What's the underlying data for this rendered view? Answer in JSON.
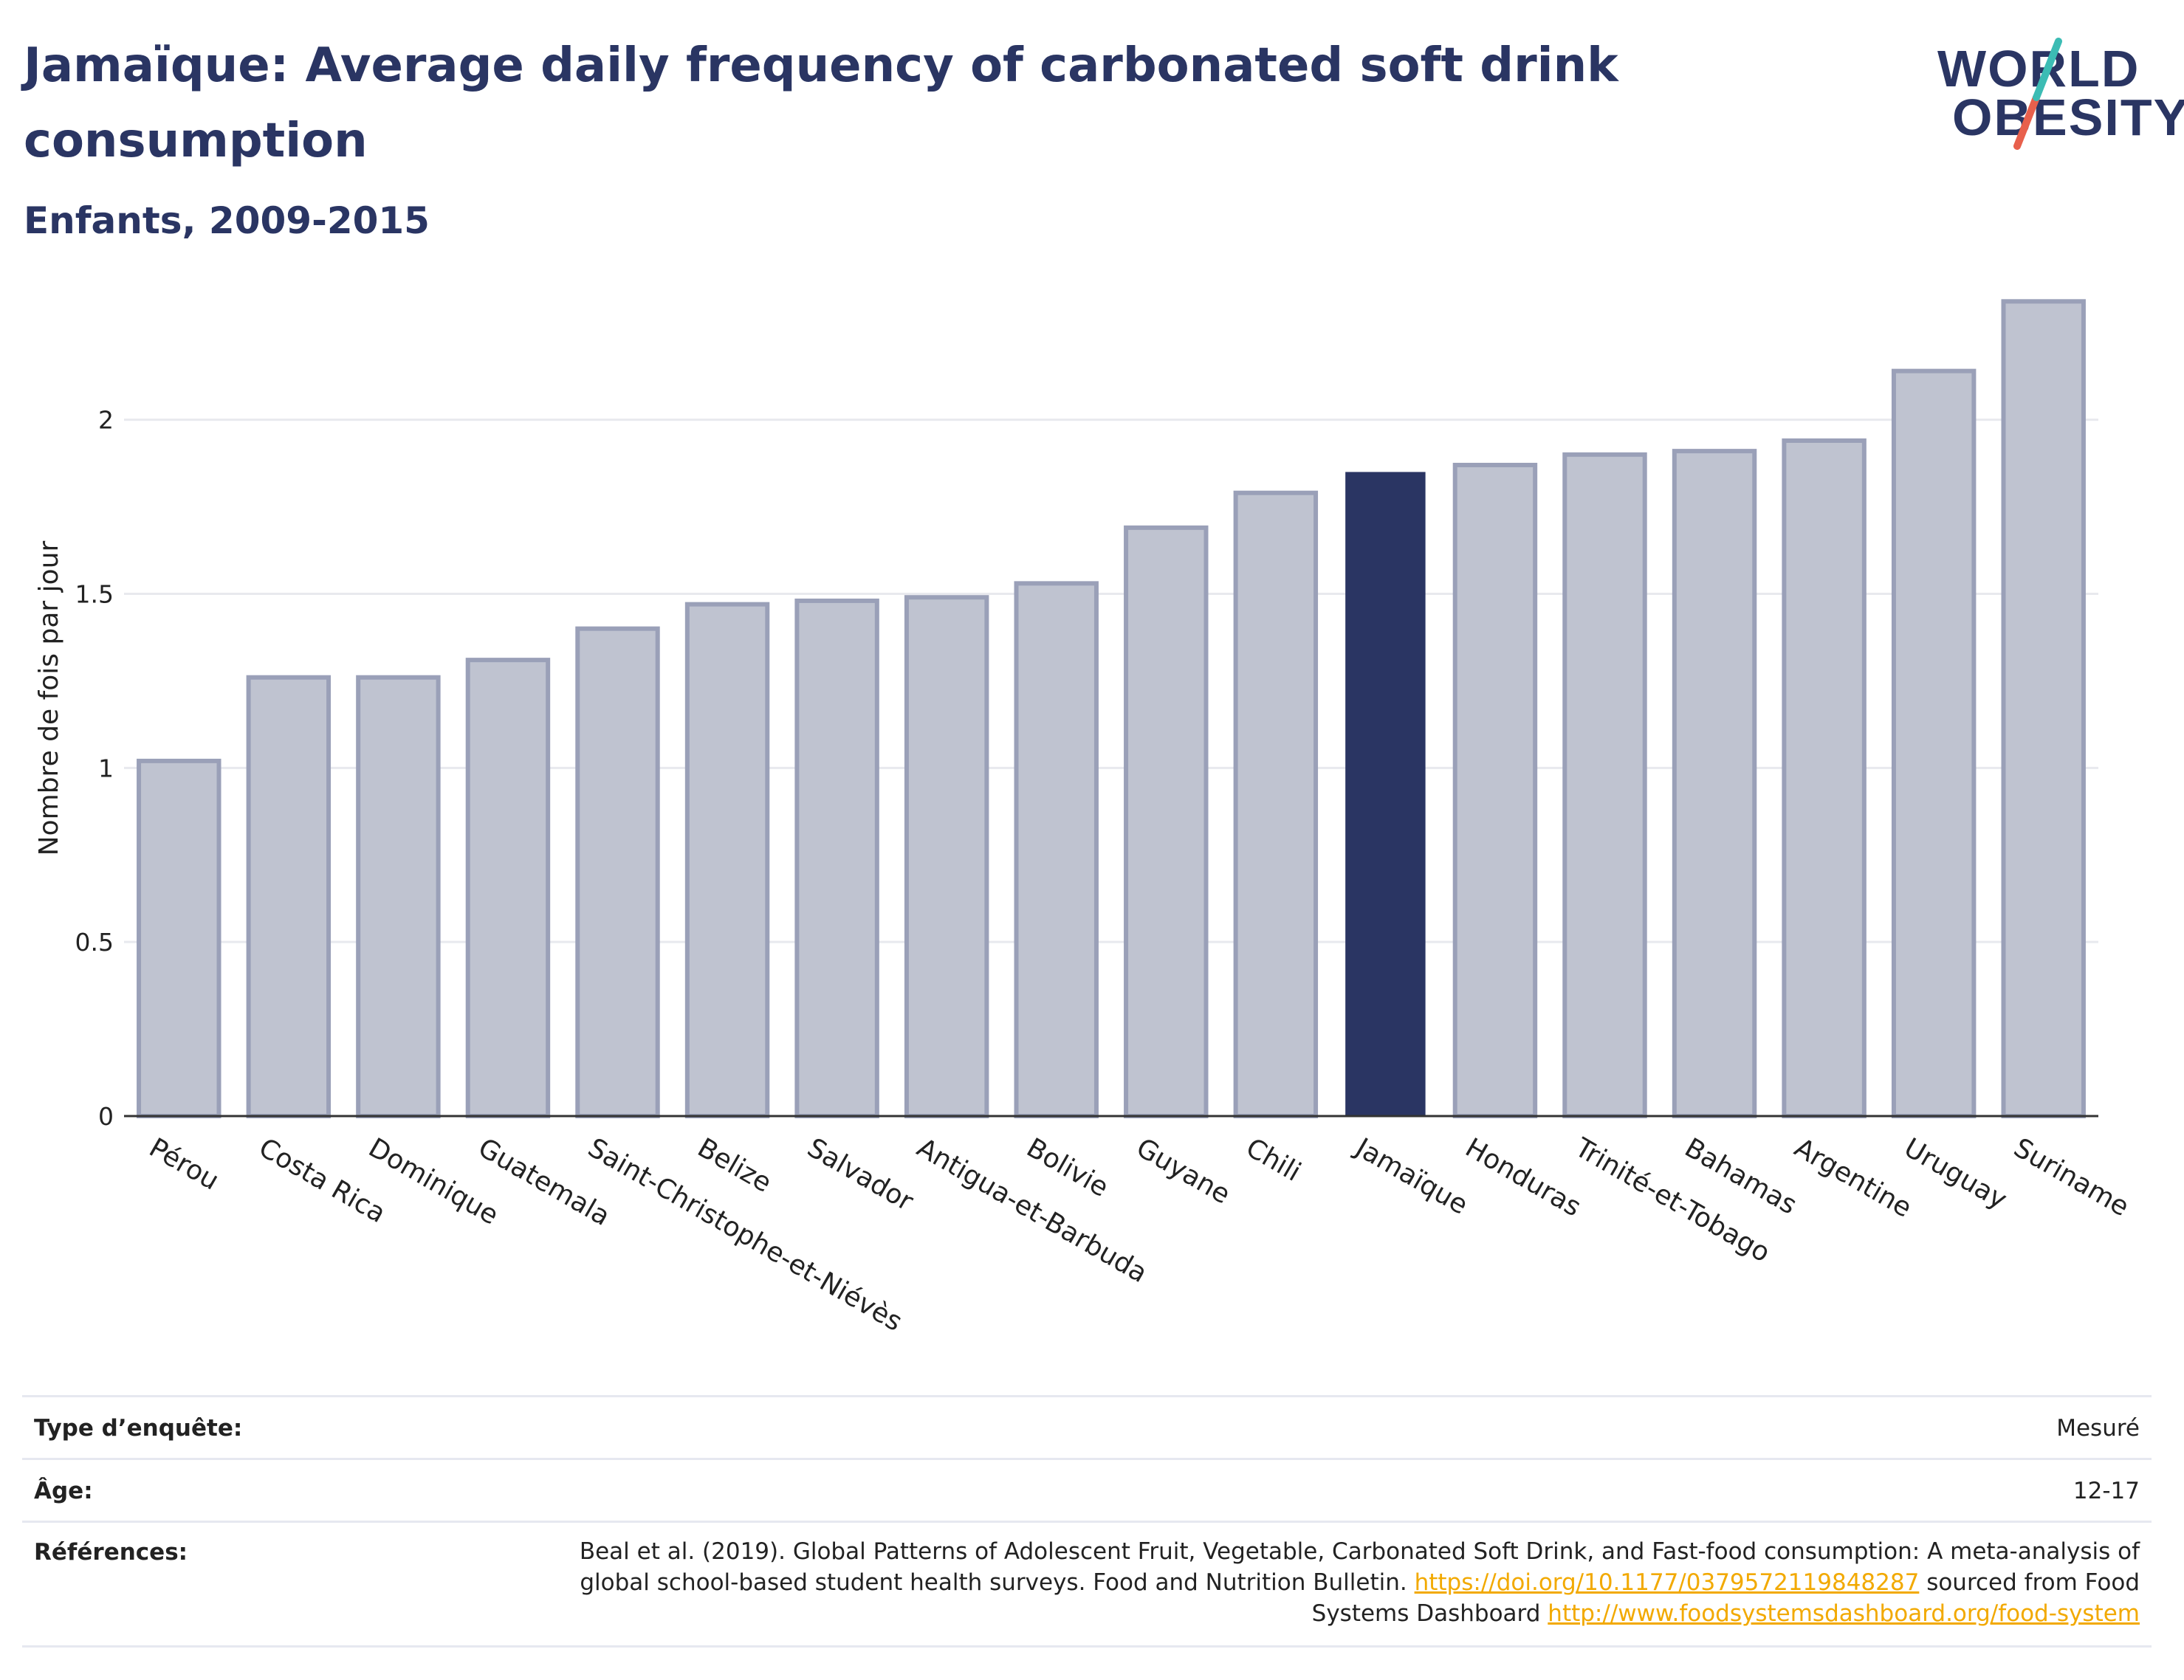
{
  "header": {
    "title": "Jamaïque: Average daily frequency of carbonated soft drink consumption",
    "subtitle": "Enfants, 2009-2015"
  },
  "logo": {
    "line1": "WORLD",
    "line2": "OBESITY",
    "accent_teal": "#3cbcb4",
    "accent_red": "#e8604c"
  },
  "colors": {
    "bar": "#bfc3d0",
    "bar_stroke": "#9aa0b8",
    "highlight": "#2a3563",
    "grid": "#e8e9ee",
    "axis": "#333333"
  },
  "chart_data": {
    "type": "bar",
    "ylabel": "Nombre de fois par jour",
    "ylim": [
      0,
      2.4
    ],
    "yticks": [
      0,
      0.5,
      1,
      1.5,
      2
    ],
    "ytick_labels": [
      "0",
      "0.5",
      "1",
      "1.5",
      "2"
    ],
    "highlight": "Jamaïque",
    "categories": [
      "Pérou",
      "Costa Rica",
      "Dominique",
      "Guatemala",
      "Saint-Christophe-et-Niévès",
      "Belize",
      "Salvador",
      "Antigua-et-Barbuda",
      "Bolivie",
      "Guyane",
      "Chili",
      "Jamaïque",
      "Honduras",
      "Trinité-et-Tobago",
      "Bahamas",
      "Argentine",
      "Uruguay",
      "Suriname"
    ],
    "values": [
      1.02,
      1.26,
      1.26,
      1.31,
      1.4,
      1.47,
      1.48,
      1.49,
      1.53,
      1.69,
      1.79,
      1.85,
      1.87,
      1.9,
      1.91,
      1.94,
      2.14,
      2.34
    ]
  },
  "info": {
    "survey_type_label": "Type d’enquête:",
    "survey_type_value": "Mesuré",
    "age_label": "Âge:",
    "age_value": "12-17",
    "references_label": "Références:",
    "references_text": "Beal et al. (2019). Global Patterns of Adolescent Fruit, Vegetable, Carbonated Soft Drink, and Fast-food consumption: A meta-analysis of global school-based student health surveys. Food and Nutrition Bulletin.",
    "references_doi": "https://doi.org/10.1177/0379572119848287",
    "references_mid": "sourced from Food Systems Dashboard",
    "references_url": "http://www.foodsystemsdashboard.org/food-system"
  }
}
